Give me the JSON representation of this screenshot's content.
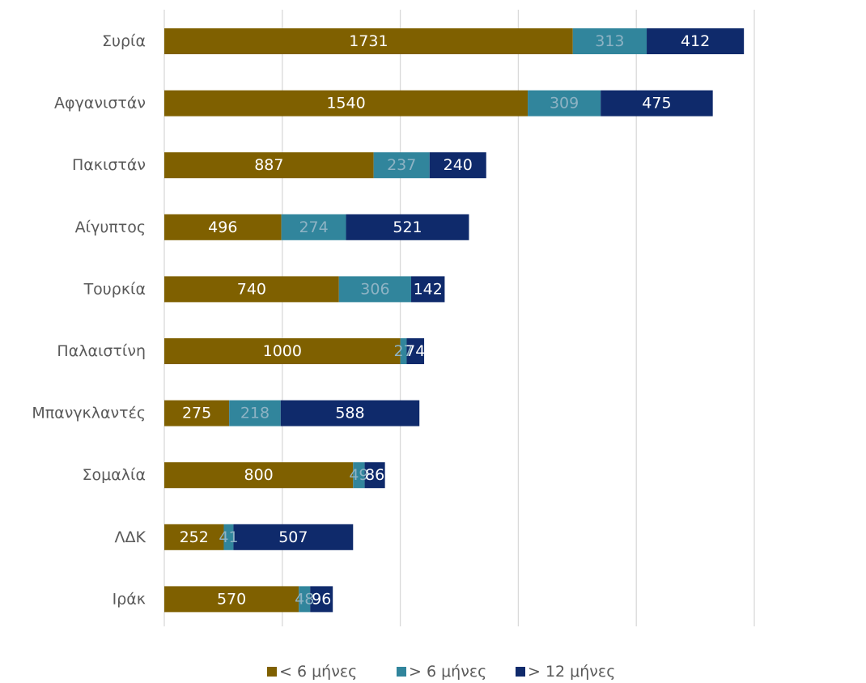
{
  "chart_data": {
    "type": "bar",
    "orientation": "horizontal",
    "stacked": true,
    "categories": [
      "Συρία",
      "Αφγανιστάν",
      "Πακιστάν",
      "Αίγυπτος",
      "Τουρκία",
      "Παλαιστίνη",
      "Μπανγκλαντές",
      "Σομαλία",
      "ΛΔΚ",
      "Ιράκ"
    ],
    "series": [
      {
        "name": "< 6 μήνες",
        "color": "#7f6000",
        "label_color": "#ffffff",
        "values": [
          1731,
          1540,
          887,
          496,
          740,
          1000,
          275,
          800,
          252,
          570
        ]
      },
      {
        "name": "> 6 μήνες",
        "color": "#31859c",
        "label_color": "#8eb3c4",
        "values": [
          313,
          309,
          237,
          274,
          306,
          27,
          218,
          49,
          41,
          48
        ]
      },
      {
        "name": "> 12 μήνες",
        "color": "#0f2a6b",
        "label_color": "#ffffff",
        "values": [
          412,
          475,
          240,
          521,
          142,
          74,
          588,
          86,
          507,
          96
        ]
      }
    ],
    "title": "",
    "xlabel": "",
    "ylabel": "",
    "xlim": [
      0,
      2500
    ],
    "gridlines": "vertical",
    "legend_position": "bottom",
    "data_labels": true
  }
}
